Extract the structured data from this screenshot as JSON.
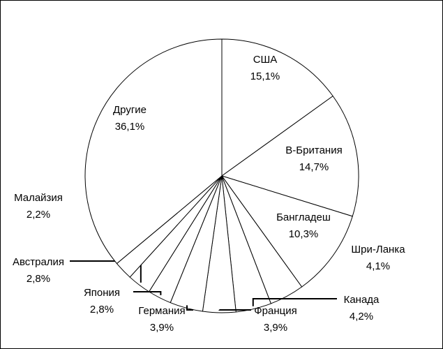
{
  "chart_data": {
    "type": "pie",
    "categories": [
      "США",
      "В-Британия",
      "Бангладеш",
      "Шри-Ланка",
      "Канада",
      "Франция",
      "Германия",
      "Япония",
      "Австралия",
      "Малайзия",
      "Другие"
    ],
    "values": [
      15.1,
      14.7,
      10.3,
      4.1,
      4.2,
      3.9,
      3.9,
      2.8,
      2.8,
      2.2,
      36.1
    ],
    "value_labels": [
      "15,1%",
      "14,7%",
      "10,3%",
      "4,1%",
      "4,2%",
      "3,9%",
      "3,9%",
      "2,8%",
      "2,8%",
      "2,2%",
      "36,1%"
    ],
    "color": "#ffffff"
  }
}
